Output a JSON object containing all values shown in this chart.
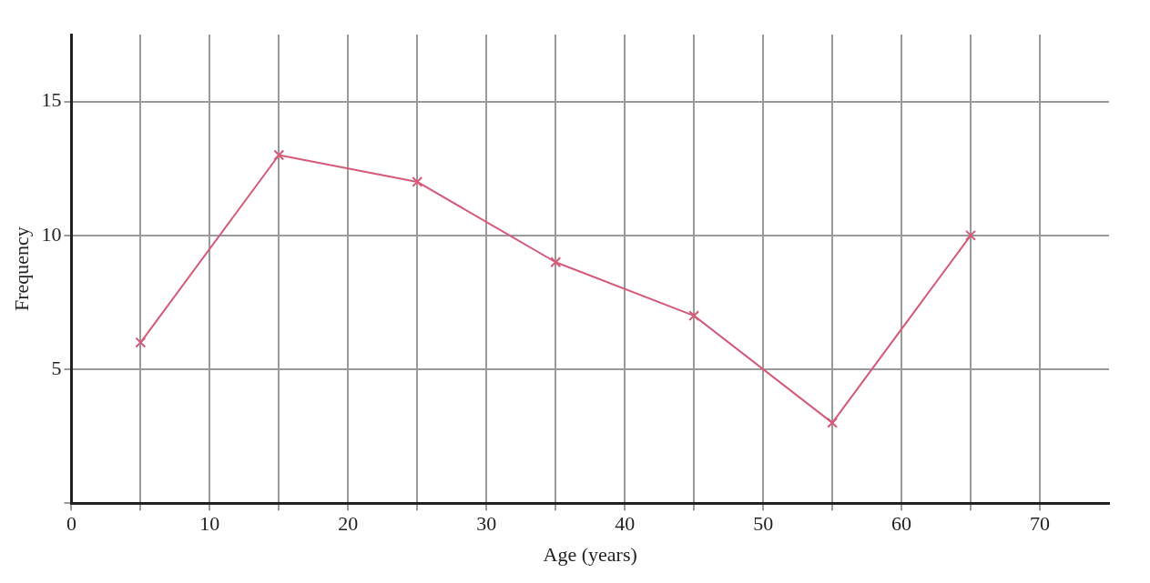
{
  "chart_data": {
    "type": "line",
    "xlabel": "Age (years)",
    "ylabel": "Frequency",
    "x": [
      5,
      15,
      25,
      35,
      45,
      55,
      65
    ],
    "values": [
      6,
      13,
      12,
      9,
      7,
      3,
      10
    ],
    "color": "#d45a78",
    "marker": "cross",
    "line_style": "solid",
    "xlim": [
      0,
      75
    ],
    "ylim": [
      0,
      17.5
    ],
    "xticks": [
      0,
      {
        "value": 5,
        "label": null
      },
      10,
      {
        "value": 15,
        "label": null
      },
      20,
      {
        "value": 25,
        "label": null
      },
      30,
      {
        "value": 35,
        "label": null
      },
      40,
      {
        "value": 45,
        "label": null
      },
      50,
      {
        "value": 55,
        "label": null
      },
      60,
      {
        "value": 65,
        "label": null
      },
      70
    ],
    "yticks": [
      {
        "value": 0,
        "label": null
      },
      5,
      10,
      15
    ],
    "grid": true,
    "legend": false
  }
}
